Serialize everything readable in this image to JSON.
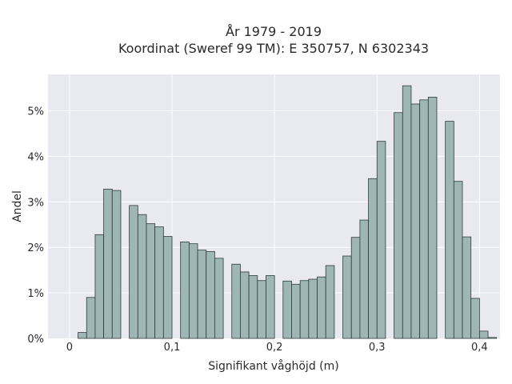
{
  "chart_data": {
    "type": "bar",
    "title": "År 1979 - 2019",
    "subtitle": "Koordinat (Sweref 99 TM): E 350757, N 6302343",
    "xlabel": "Signifikant våghöjd (m)",
    "ylabel": "Andel",
    "xlim": [
      -0.021,
      0.42
    ],
    "ylim": [
      0,
      0.058
    ],
    "grid": true,
    "x_ticks": [
      {
        "value": 0,
        "label": "0"
      },
      {
        "value": 0.1,
        "label": "0,1"
      },
      {
        "value": 0.2,
        "label": "0,2"
      },
      {
        "value": 0.3,
        "label": "0,3"
      },
      {
        "value": 0.4,
        "label": "0,4"
      }
    ],
    "y_ticks": [
      {
        "value": 0,
        "label": "0%"
      },
      {
        "value": 0.01,
        "label": "1%"
      },
      {
        "value": 0.02,
        "label": "2%"
      },
      {
        "value": 0.03,
        "label": "3%"
      },
      {
        "value": 0.04,
        "label": "4%"
      },
      {
        "value": 0.05,
        "label": "5%"
      }
    ],
    "bin_width": 0.00833,
    "bin_starts": [
      0.008333,
      0.016667,
      0.025,
      0.033333,
      0.041667,
      0.058333,
      0.066667,
      0.075,
      0.083333,
      0.091667,
      0.108333,
      0.116667,
      0.125,
      0.133333,
      0.141667,
      0.158333,
      0.166667,
      0.175,
      0.183333,
      0.191667,
      0.208333,
      0.216667,
      0.225,
      0.233333,
      0.241667,
      0.25,
      0.266667,
      0.275,
      0.283333,
      0.291667,
      0.3,
      0.316667,
      0.325,
      0.333333,
      0.341667,
      0.35,
      0.366667,
      0.375,
      0.383333,
      0.391667,
      0.4,
      0.408333
    ],
    "values": [
      0.0013,
      0.009,
      0.0228,
      0.0328,
      0.0325,
      0.0292,
      0.0272,
      0.0252,
      0.0245,
      0.0224,
      0.0212,
      0.0208,
      0.0194,
      0.0191,
      0.0176,
      0.0163,
      0.0146,
      0.0138,
      0.0127,
      0.0138,
      0.0126,
      0.0119,
      0.0127,
      0.013,
      0.0135,
      0.016,
      0.0181,
      0.0222,
      0.026,
      0.0351,
      0.0433,
      0.0496,
      0.0555,
      0.0515,
      0.0524,
      0.053,
      0.0477,
      0.0345,
      0.0223,
      0.0088,
      0.0016,
      0.0002
    ]
  }
}
